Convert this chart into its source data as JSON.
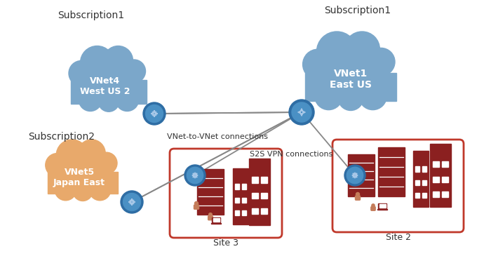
{
  "bg_color": "#ffffff",
  "subscription1_left_label": "Subscription1",
  "subscription1_right_label": "Subscription1",
  "subscription2_label": "Subscription2",
  "vnet4_label": "VNet4\nWest US 2",
  "vnet1_label": "VNet1\nEast US",
  "vnet5_label": "VNet5\nJapan East",
  "site2_label": "Site 2",
  "site3_label": "Site 3",
  "vnet_connection_label": "VNet-to-VNet connections",
  "s2s_connection_label": "S2S VPN connections",
  "cloud_blue_color": "#7ba7ca",
  "cloud_orange_color": "#e8a96b",
  "gateway_outer": "#2e6da4",
  "gateway_inner": "#4a90c4",
  "gateway_arrow": "#a8c8e8",
  "site_red": "#8b2020",
  "site_red_border": "#c0392b",
  "site_person_color": "#c47c5a",
  "arrow_color": "#888888",
  "text_color": "#333333",
  "sub_fontsize": 10,
  "vnet_fontsize": 9,
  "conn_fontsize": 8,
  "site_label_fontsize": 9
}
